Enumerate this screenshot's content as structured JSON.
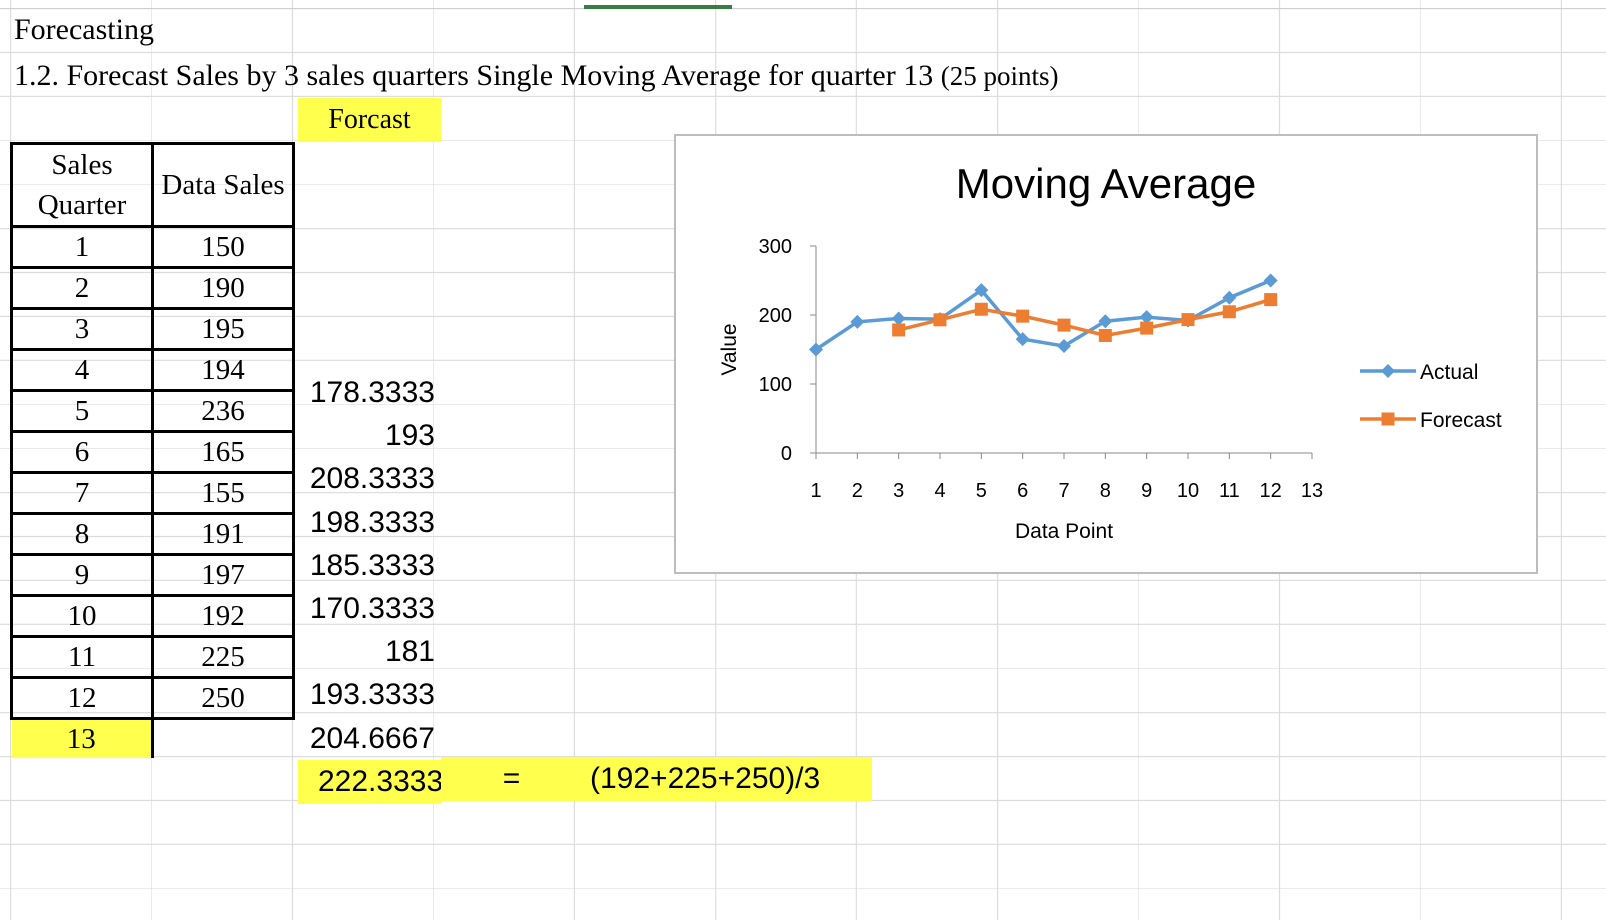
{
  "sheet": {
    "title": "Forecasting",
    "subtitle": "1.2. Forecast Sales by 3 sales quarters Single Moving Average for quarter 13",
    "subtitle_points": "(25 points)",
    "forecast_header": "Forcast",
    "table_headers": [
      "Sales Quarter",
      "Data Sales"
    ],
    "rows": [
      {
        "quarter": "1",
        "sales": "150"
      },
      {
        "quarter": "2",
        "sales": "190"
      },
      {
        "quarter": "3",
        "sales": "195"
      },
      {
        "quarter": "4",
        "sales": "194"
      },
      {
        "quarter": "5",
        "sales": "236"
      },
      {
        "quarter": "6",
        "sales": "165"
      },
      {
        "quarter": "7",
        "sales": "155"
      },
      {
        "quarter": "8",
        "sales": "191"
      },
      {
        "quarter": "9",
        "sales": "197"
      },
      {
        "quarter": "10",
        "sales": "192"
      },
      {
        "quarter": "11",
        "sales": "225"
      },
      {
        "quarter": "12",
        "sales": "250"
      },
      {
        "quarter": "13",
        "sales": ""
      }
    ],
    "forecasts": [
      "178.3333",
      "193",
      "208.3333",
      "198.3333",
      "185.3333",
      "170.3333",
      "181",
      "193.3333",
      "204.6667",
      "222.3333"
    ],
    "equals_sign": "=",
    "formula": "(192+225+250)/3",
    "highlight_color": "#ffff4d"
  },
  "chart_data": {
    "type": "line",
    "title": "Moving Average",
    "xlabel": "Data Point",
    "ylabel": "Value",
    "categories": [
      "1",
      "2",
      "3",
      "4",
      "5",
      "6",
      "7",
      "8",
      "9",
      "10",
      "11",
      "12",
      "13"
    ],
    "ylim": [
      0,
      300
    ],
    "yticks": [
      "0",
      "100",
      "200",
      "300"
    ],
    "series": [
      {
        "name": "Actual",
        "color": "#5b9bd5",
        "marker": "diamond",
        "values": [
          150,
          190,
          195,
          194,
          236,
          165,
          155,
          191,
          197,
          192,
          225,
          250,
          null
        ]
      },
      {
        "name": "Forecast",
        "color": "#ed7d31",
        "marker": "square",
        "values": [
          null,
          null,
          178.3333,
          193,
          208.3333,
          198.3333,
          185.3333,
          170.3333,
          181,
          193.3333,
          204.6667,
          222.3333,
          null
        ]
      }
    ],
    "legend": "right"
  }
}
